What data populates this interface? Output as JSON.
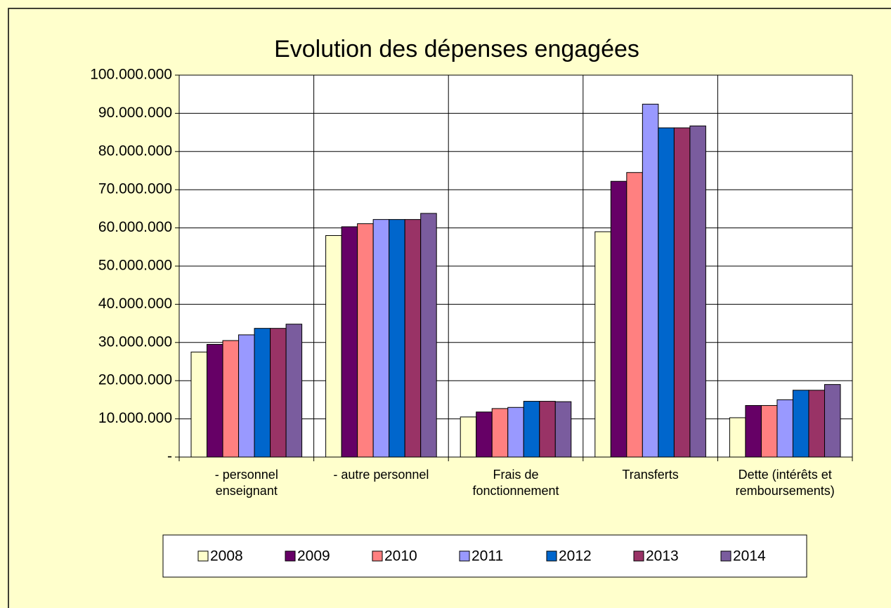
{
  "chart_data": {
    "type": "bar",
    "title": "Evolution des dépenses engagées",
    "categories": [
      "- personnel\nenseignant",
      "- autre personnel",
      "Frais de\nfonctionnement",
      "Transferts",
      "Dette (intérêts et\nremboursements)"
    ],
    "series": [
      {
        "name": "2008",
        "color": "#FFFFCC",
        "values": [
          27500000,
          58000000,
          10500000,
          59000000,
          10300000
        ]
      },
      {
        "name": "2009",
        "color": "#660066",
        "values": [
          29500000,
          60300000,
          11800000,
          72200000,
          13500000
        ]
      },
      {
        "name": "2010",
        "color": "#FF8080",
        "values": [
          30500000,
          61100000,
          12700000,
          74500000,
          13500000
        ]
      },
      {
        "name": "2011",
        "color": "#9999FF",
        "values": [
          32000000,
          62200000,
          13000000,
          92400000,
          15000000
        ]
      },
      {
        "name": "2012",
        "color": "#0066CC",
        "values": [
          33700000,
          62200000,
          14600000,
          86200000,
          17500000
        ]
      },
      {
        "name": "2013",
        "color": "#993366",
        "values": [
          33700000,
          62200000,
          14600000,
          86200000,
          17500000
        ]
      },
      {
        "name": "2014",
        "color": "#7A5C9E",
        "values": [
          34800000,
          63800000,
          14500000,
          86700000,
          19000000
        ]
      }
    ],
    "ylim": [
      0,
      100000000
    ],
    "yticks": [
      {
        "value": 0,
        "label": "-"
      },
      {
        "value": 10000000,
        "label": "10.000.000"
      },
      {
        "value": 20000000,
        "label": "20.000.000"
      },
      {
        "value": 30000000,
        "label": "30.000.000"
      },
      {
        "value": 40000000,
        "label": "40.000.000"
      },
      {
        "value": 50000000,
        "label": "50.000.000"
      },
      {
        "value": 60000000,
        "label": "60.000.000"
      },
      {
        "value": 70000000,
        "label": "70.000.000"
      },
      {
        "value": 80000000,
        "label": "80.000.000"
      },
      {
        "value": 90000000,
        "label": "90.000.000"
      },
      {
        "value": 100000000,
        "label": "100.000.000"
      }
    ],
    "grid": true,
    "legend": "bottom"
  }
}
